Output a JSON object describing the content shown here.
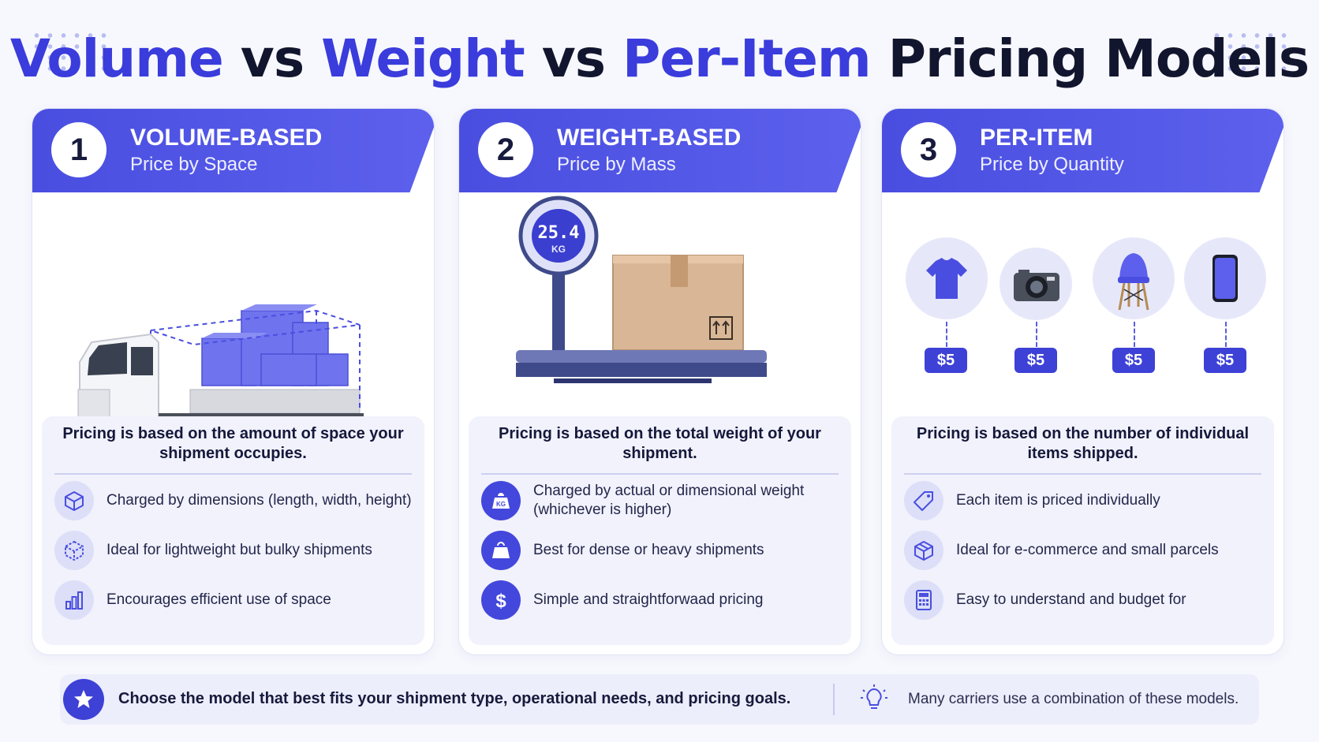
{
  "title": {
    "part1": "Volume",
    "vs1": " vs ",
    "part2": "Weight",
    "vs2": " vs ",
    "part3": "Per-Item",
    "part4": " Pricing Models"
  },
  "colors": {
    "accent": "#3a3cdc",
    "header": "#4a4ee0",
    "panel": "#f1f2fc"
  },
  "cards": [
    {
      "number": "1",
      "title": "VOLUME-BASED",
      "subtitle": "Price by Space",
      "description": "Pricing is based on the amount of space your shipment occupies.",
      "features": [
        {
          "icon": "cube-icon",
          "text": "Charged by dimensions (length, width, height)"
        },
        {
          "icon": "dashed-box-icon",
          "text": "Ideal for lightweight but bulky shipments"
        },
        {
          "icon": "bar-chart-icon",
          "text": "Encourages efficient use of space"
        }
      ]
    },
    {
      "number": "2",
      "title": "WEIGHT-BASED",
      "subtitle": "Price by Mass",
      "scale_reading": "25.4",
      "scale_unit": "KG",
      "description": "Pricing is based on the total weight of your shipment.",
      "features": [
        {
          "icon": "kg-weight-icon",
          "text": "Charged by actual or dimensional weight (whichever is higher)"
        },
        {
          "icon": "weight-icon",
          "text": "Best for dense or heavy shipments"
        },
        {
          "icon": "dollar-icon",
          "text": "Simple and straightforwaad pricing"
        }
      ]
    },
    {
      "number": "3",
      "title": "PER-ITEM",
      "subtitle": "Price by Quantity",
      "items": [
        {
          "icon": "tshirt-icon",
          "price": "$5"
        },
        {
          "icon": "camera-icon",
          "price": "$5"
        },
        {
          "icon": "chair-icon",
          "price": "$5"
        },
        {
          "icon": "smartphone-icon",
          "price": "$5"
        }
      ],
      "description": "Pricing is based on the number of individual items shipped.",
      "features": [
        {
          "icon": "price-tag-icon",
          "text": "Each item is priced individually"
        },
        {
          "icon": "parcel-icon",
          "text": "Ideal for e-commerce and small parcels"
        },
        {
          "icon": "calculator-icon",
          "text": "Easy to understand and budget for"
        }
      ]
    }
  ],
  "footer": {
    "main": "Choose the model that best fits your shipment type, operational needs, and pricing goals.",
    "note": "Many carriers use a combination of these models."
  }
}
